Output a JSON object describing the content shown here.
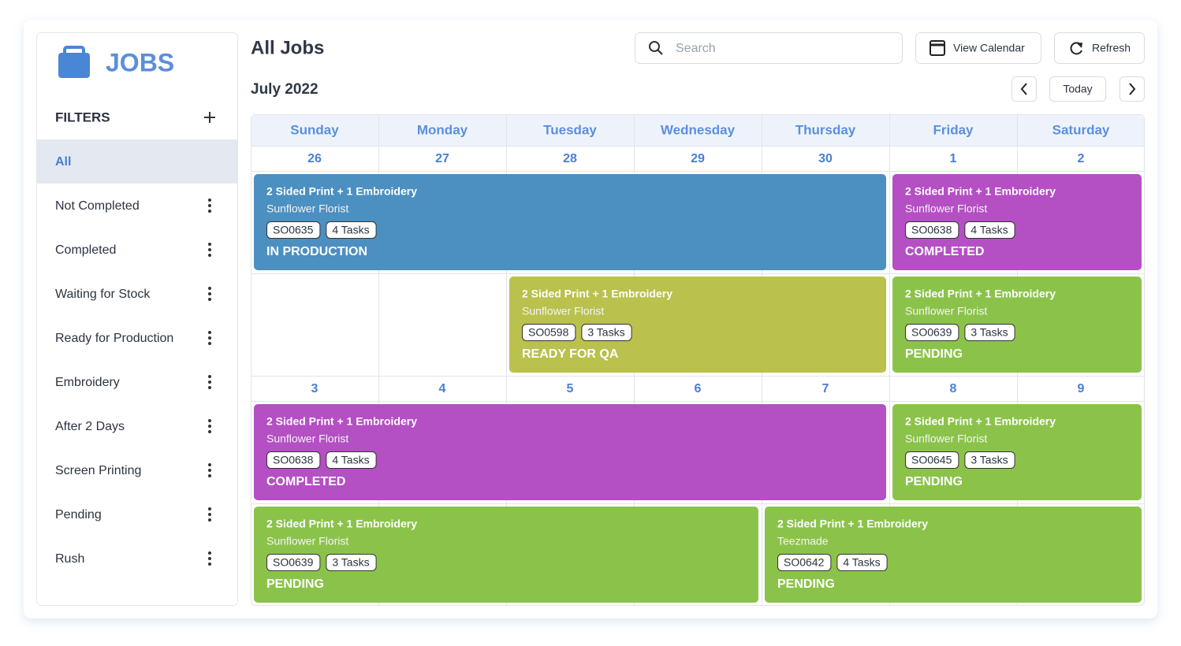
{
  "sidebar": {
    "title": "JOBS",
    "filters_label": "FILTERS",
    "filters": [
      "All",
      "Not Completed",
      "Completed",
      "Waiting for Stock",
      "Ready for Production",
      "Embroidery",
      "After 2 Days",
      "Screen Printing",
      "Pending",
      "Rush"
    ]
  },
  "header": {
    "title": "All Jobs",
    "search_placeholder": "Search",
    "view_calendar": "View Calendar",
    "refresh": "Refresh"
  },
  "calendar": {
    "month": "July 2022",
    "today": "Today",
    "weekdays": [
      "Sunday",
      "Monday",
      "Tuesday",
      "Wednesday",
      "Thursday",
      "Friday",
      "Saturday"
    ],
    "weeks": [
      {
        "dates": [
          26,
          27,
          28,
          29,
          30,
          1,
          2
        ],
        "events": [
          {
            "title": "2 Sided Print + 1 Embroidery",
            "customer": "Sunflower Florist",
            "order": "SO0635",
            "tasks": "4 Tasks",
            "status": "IN PRODUCTION",
            "color": "#4c8fc1"
          },
          {
            "title": "2 Sided Print + 1 Embroidery",
            "customer": "Sunflower Florist",
            "order": "SO0638",
            "tasks": "4 Tasks",
            "status": "COMPLETED",
            "color": "#b44fc4"
          },
          {
            "title": "2 Sided Print + 1 Embroidery",
            "customer": "Sunflower Florist",
            "order": "SO0598",
            "tasks": "3 Tasks",
            "status": "READY FOR QA",
            "color": "#bac14c"
          },
          {
            "title": "2 Sided Print + 1 Embroidery",
            "customer": "Sunflower Florist",
            "order": "SO0639",
            "tasks": "3 Tasks",
            "status": "PENDING",
            "color": "#8bc34a"
          }
        ]
      },
      {
        "dates": [
          3,
          4,
          5,
          6,
          7,
          8,
          9
        ],
        "events": [
          {
            "title": "2 Sided Print + 1 Embroidery",
            "customer": "Sunflower Florist",
            "order": "SO0638",
            "tasks": "4 Tasks",
            "status": "COMPLETED",
            "color": "#b44fc4"
          },
          {
            "title": "2 Sided Print + 1 Embroidery",
            "customer": "Sunflower Florist",
            "order": "SO0645",
            "tasks": "3 Tasks",
            "status": "PENDING",
            "color": "#8bc34a"
          },
          {
            "title": "2 Sided Print + 1 Embroidery",
            "customer": "Sunflower Florist",
            "order": "SO0639",
            "tasks": "3 Tasks",
            "status": "PENDING",
            "color": "#8bc34a"
          },
          {
            "title": "2 Sided Print + 1 Embroidery",
            "customer": "Teezmade",
            "order": "SO0642",
            "tasks": "4 Tasks",
            "status": "PENDING",
            "color": "#8bc34a"
          }
        ]
      }
    ]
  }
}
